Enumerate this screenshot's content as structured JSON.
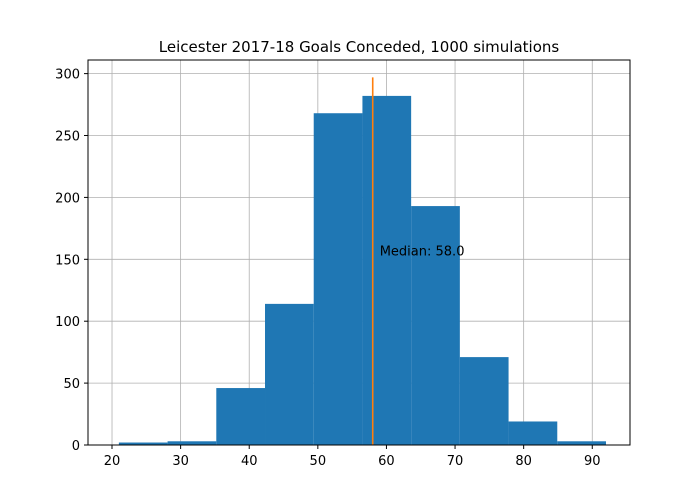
{
  "chart_data": {
    "type": "bar",
    "title": "Leicester 2017-18 Goals Conceded, 1000 simulations",
    "xlabel": "",
    "ylabel": "",
    "bins": [
      {
        "x0": 21.0,
        "x1": 28.1,
        "count": 2
      },
      {
        "x0": 28.1,
        "x1": 35.2,
        "count": 3
      },
      {
        "x0": 35.2,
        "x1": 42.3,
        "count": 46
      },
      {
        "x0": 42.3,
        "x1": 49.4,
        "count": 114
      },
      {
        "x0": 49.4,
        "x1": 56.5,
        "count": 268
      },
      {
        "x0": 56.5,
        "x1": 63.6,
        "count": 282
      },
      {
        "x0": 63.6,
        "x1": 70.7,
        "count": 193
      },
      {
        "x0": 70.7,
        "x1": 77.8,
        "count": 71
      },
      {
        "x0": 77.8,
        "x1": 84.9,
        "count": 19
      },
      {
        "x0": 84.9,
        "x1": 92.0,
        "count": 3
      }
    ],
    "xlim": [
      16.5,
      95.5
    ],
    "ylim": [
      0,
      311
    ],
    "xticks": [
      20,
      30,
      40,
      50,
      60,
      70,
      80,
      90
    ],
    "yticks": [
      0,
      50,
      100,
      150,
      200,
      250,
      300
    ],
    "grid": true,
    "bar_color": "#1f77b4",
    "median": {
      "value": 58.0,
      "line_top": 297,
      "color": "#ff7f0e",
      "label": "Median: 58.0",
      "label_y": 157
    }
  }
}
